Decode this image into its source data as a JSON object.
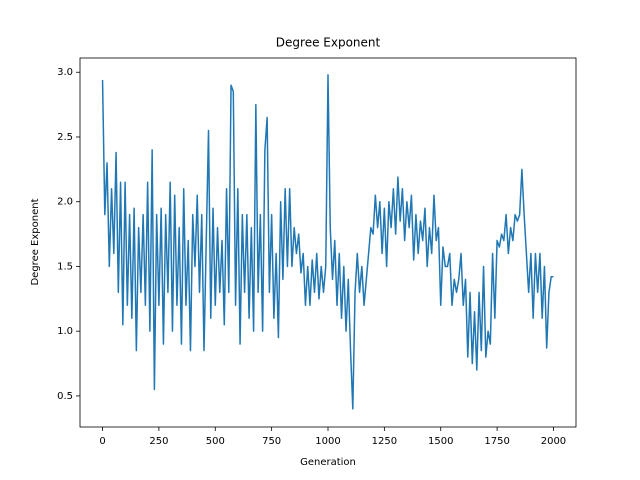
{
  "chart_data": {
    "type": "line",
    "title": "Degree Exponent",
    "x_label": "Generation",
    "y_label": "Degree Exponent",
    "x": [
      0,
      10,
      20,
      30,
      40,
      50,
      60,
      70,
      80,
      90,
      100,
      110,
      120,
      130,
      140,
      150,
      160,
      170,
      180,
      190,
      200,
      210,
      220,
      230,
      240,
      250,
      260,
      270,
      280,
      290,
      300,
      310,
      320,
      330,
      340,
      350,
      360,
      370,
      380,
      390,
      400,
      410,
      420,
      430,
      440,
      450,
      460,
      470,
      480,
      490,
      500,
      510,
      520,
      530,
      540,
      550,
      560,
      570,
      580,
      590,
      600,
      610,
      620,
      630,
      640,
      650,
      660,
      670,
      680,
      690,
      700,
      710,
      720,
      730,
      740,
      750,
      760,
      770,
      780,
      790,
      800,
      810,
      820,
      830,
      840,
      850,
      860,
      870,
      880,
      890,
      900,
      910,
      920,
      930,
      940,
      950,
      960,
      970,
      980,
      990,
      1000,
      1010,
      1020,
      1030,
      1040,
      1050,
      1060,
      1070,
      1080,
      1090,
      1100,
      1110,
      1120,
      1130,
      1140,
      1150,
      1160,
      1170,
      1180,
      1190,
      1200,
      1210,
      1220,
      1230,
      1240,
      1250,
      1260,
      1270,
      1280,
      1290,
      1300,
      1310,
      1320,
      1330,
      1340,
      1350,
      1360,
      1370,
      1380,
      1390,
      1400,
      1410,
      1420,
      1430,
      1440,
      1450,
      1460,
      1470,
      1480,
      1490,
      1500,
      1510,
      1520,
      1530,
      1540,
      1550,
      1560,
      1570,
      1580,
      1590,
      1600,
      1610,
      1620,
      1630,
      1640,
      1650,
      1660,
      1670,
      1680,
      1690,
      1700,
      1710,
      1720,
      1730,
      1740,
      1750,
      1760,
      1770,
      1780,
      1790,
      1800,
      1810,
      1820,
      1830,
      1840,
      1850,
      1860,
      1870,
      1880,
      1890,
      1900,
      1910,
      1920,
      1930,
      1940,
      1950,
      1960,
      1970,
      1980,
      1990,
      2000
    ],
    "series": [
      {
        "color": "#1f77b4",
        "values": [
          2.94,
          1.9,
          2.3,
          1.5,
          2.1,
          1.6,
          2.38,
          1.3,
          2.15,
          1.05,
          2.15,
          1.2,
          1.9,
          1.1,
          1.95,
          0.85,
          1.8,
          1.3,
          1.9,
          1.2,
          2.15,
          1.0,
          2.4,
          0.55,
          1.9,
          1.2,
          1.95,
          0.9,
          1.9,
          1.3,
          2.15,
          1.0,
          2.05,
          1.2,
          1.8,
          0.9,
          2.1,
          1.2,
          1.7,
          0.85,
          1.9,
          1.5,
          2.05,
          1.3,
          1.9,
          0.85,
          1.7,
          2.55,
          1.1,
          1.95,
          1.2,
          1.8,
          1.3,
          1.7,
          1.05,
          2.1,
          1.3,
          2.9,
          2.85,
          1.2,
          2.1,
          0.9,
          1.9,
          1.3,
          1.9,
          1.1,
          1.8,
          1.0,
          2.75,
          1.3,
          1.9,
          1.0,
          2.4,
          2.65,
          1.3,
          1.9,
          1.1,
          1.6,
          0.95,
          2.0,
          1.4,
          2.1,
          1.5,
          2.1,
          1.5,
          1.8,
          1.6,
          1.75,
          1.45,
          1.6,
          1.2,
          1.5,
          1.2,
          1.55,
          1.3,
          1.6,
          1.25,
          1.5,
          1.3,
          1.5,
          2.98,
          1.8,
          1.4,
          1.7,
          1.2,
          1.6,
          1.1,
          1.5,
          1.0,
          1.4,
          0.85,
          0.4,
          1.3,
          1.6,
          1.3,
          1.5,
          1.2,
          1.4,
          1.6,
          1.8,
          1.75,
          2.05,
          1.8,
          2.0,
          1.6,
          1.95,
          1.5,
          2.0,
          1.8,
          2.1,
          1.75,
          2.19,
          1.85,
          2.1,
          1.7,
          2.0,
          1.8,
          2.05,
          1.55,
          1.9,
          1.6,
          1.85,
          1.7,
          1.95,
          1.5,
          1.8,
          1.6,
          2.05,
          1.7,
          1.8,
          1.2,
          1.65,
          1.5,
          1.5,
          1.6,
          1.2,
          1.4,
          1.3,
          1.4,
          1.6,
          1.2,
          1.4,
          0.8,
          1.3,
          0.75,
          1.15,
          0.7,
          1.3,
          0.85,
          1.5,
          0.8,
          1.0,
          0.9,
          1.6,
          1.1,
          1.7,
          1.65,
          1.75,
          1.7,
          1.9,
          1.6,
          1.8,
          1.7,
          1.9,
          1.85,
          1.9,
          2.25,
          1.9,
          1.6,
          1.3,
          1.6,
          1.1,
          1.6,
          1.3,
          1.6,
          1.1,
          1.5,
          0.87,
          1.3,
          1.42,
          1.42
        ]
      }
    ],
    "xlim": [
      -100,
      2100
    ],
    "ylim": [
      0.26,
      3.11
    ],
    "xticks": [
      0,
      250,
      500,
      750,
      1000,
      1250,
      1500,
      1750,
      2000
    ],
    "yticks": [
      0.5,
      {
        "value": 1,
        "label": "1.0"
      },
      1.5,
      {
        "value": 2,
        "label": "2.0"
      },
      2.5,
      {
        "value": 3,
        "label": "3.0"
      }
    ],
    "grid": false
  }
}
